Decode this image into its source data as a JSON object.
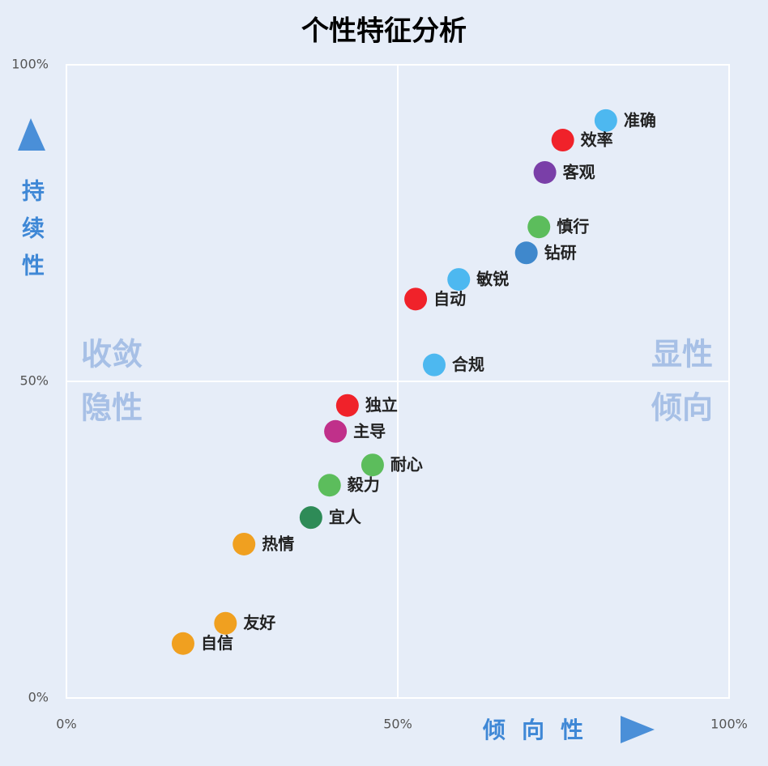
{
  "chart_data": {
    "type": "scatter",
    "title": "个性特征分析",
    "x_label": "倾向性",
    "y_label": "持续性",
    "annotations": [
      "收敛",
      "隐性",
      "显性",
      "倾向"
    ],
    "xlim": [
      0,
      100
    ],
    "ylim": [
      0,
      100
    ],
    "xticks": [
      {
        "value": 0,
        "label": "0%"
      },
      {
        "value": 50,
        "label": "50%"
      },
      {
        "value": 100,
        "label": "100%"
      }
    ],
    "yticks": [
      {
        "value": 0,
        "label": "0%"
      },
      {
        "value": 50,
        "label": "50%"
      },
      {
        "value": 100,
        "label": "100%"
      }
    ],
    "grid": true,
    "series": [
      {
        "name": "准确",
        "color": "#4db8f0",
        "x": [
          81.4
        ],
        "values": [
          91.2
        ]
      },
      {
        "name": "效率",
        "color": "#f0222a",
        "x": [
          74.9
        ],
        "values": [
          88.1
        ]
      },
      {
        "name": "客观",
        "color": "#7a3fa8",
        "x": [
          72.2
        ],
        "values": [
          83.0
        ]
      },
      {
        "name": "慎行",
        "color": "#5cbd5c",
        "x": [
          71.3
        ],
        "values": [
          74.4
        ]
      },
      {
        "name": "钻研",
        "color": "#3f88cc",
        "x": [
          69.4
        ],
        "values": [
          70.3
        ]
      },
      {
        "name": "敏锐",
        "color": "#4db8f0",
        "x": [
          59.2
        ],
        "values": [
          66.1
        ]
      },
      {
        "name": "自动",
        "color": "#f0222a",
        "x": [
          52.7
        ],
        "values": [
          63.0
        ]
      },
      {
        "name": "合规",
        "color": "#4db8f0",
        "x": [
          55.5
        ],
        "values": [
          52.6
        ]
      },
      {
        "name": "独立",
        "color": "#f0222a",
        "x": [
          42.4
        ],
        "values": [
          46.2
        ]
      },
      {
        "name": "主导",
        "color": "#c0308a",
        "x": [
          40.6
        ],
        "values": [
          42.1
        ]
      },
      {
        "name": "耐心",
        "color": "#5cbd5c",
        "x": [
          46.2
        ],
        "values": [
          36.8
        ]
      },
      {
        "name": "毅力",
        "color": "#5cbd5c",
        "x": [
          39.7
        ],
        "values": [
          33.6
        ]
      },
      {
        "name": "宜人",
        "color": "#2e8b57",
        "x": [
          36.9
        ],
        "values": [
          28.5
        ]
      },
      {
        "name": "热情",
        "color": "#f0a020",
        "x": [
          26.8
        ],
        "values": [
          24.3
        ]
      },
      {
        "name": "友好",
        "color": "#f0a020",
        "x": [
          24.0
        ],
        "values": [
          11.8
        ]
      },
      {
        "name": "自信",
        "color": "#f0a020",
        "x": [
          17.6
        ],
        "values": [
          8.6
        ]
      }
    ]
  }
}
